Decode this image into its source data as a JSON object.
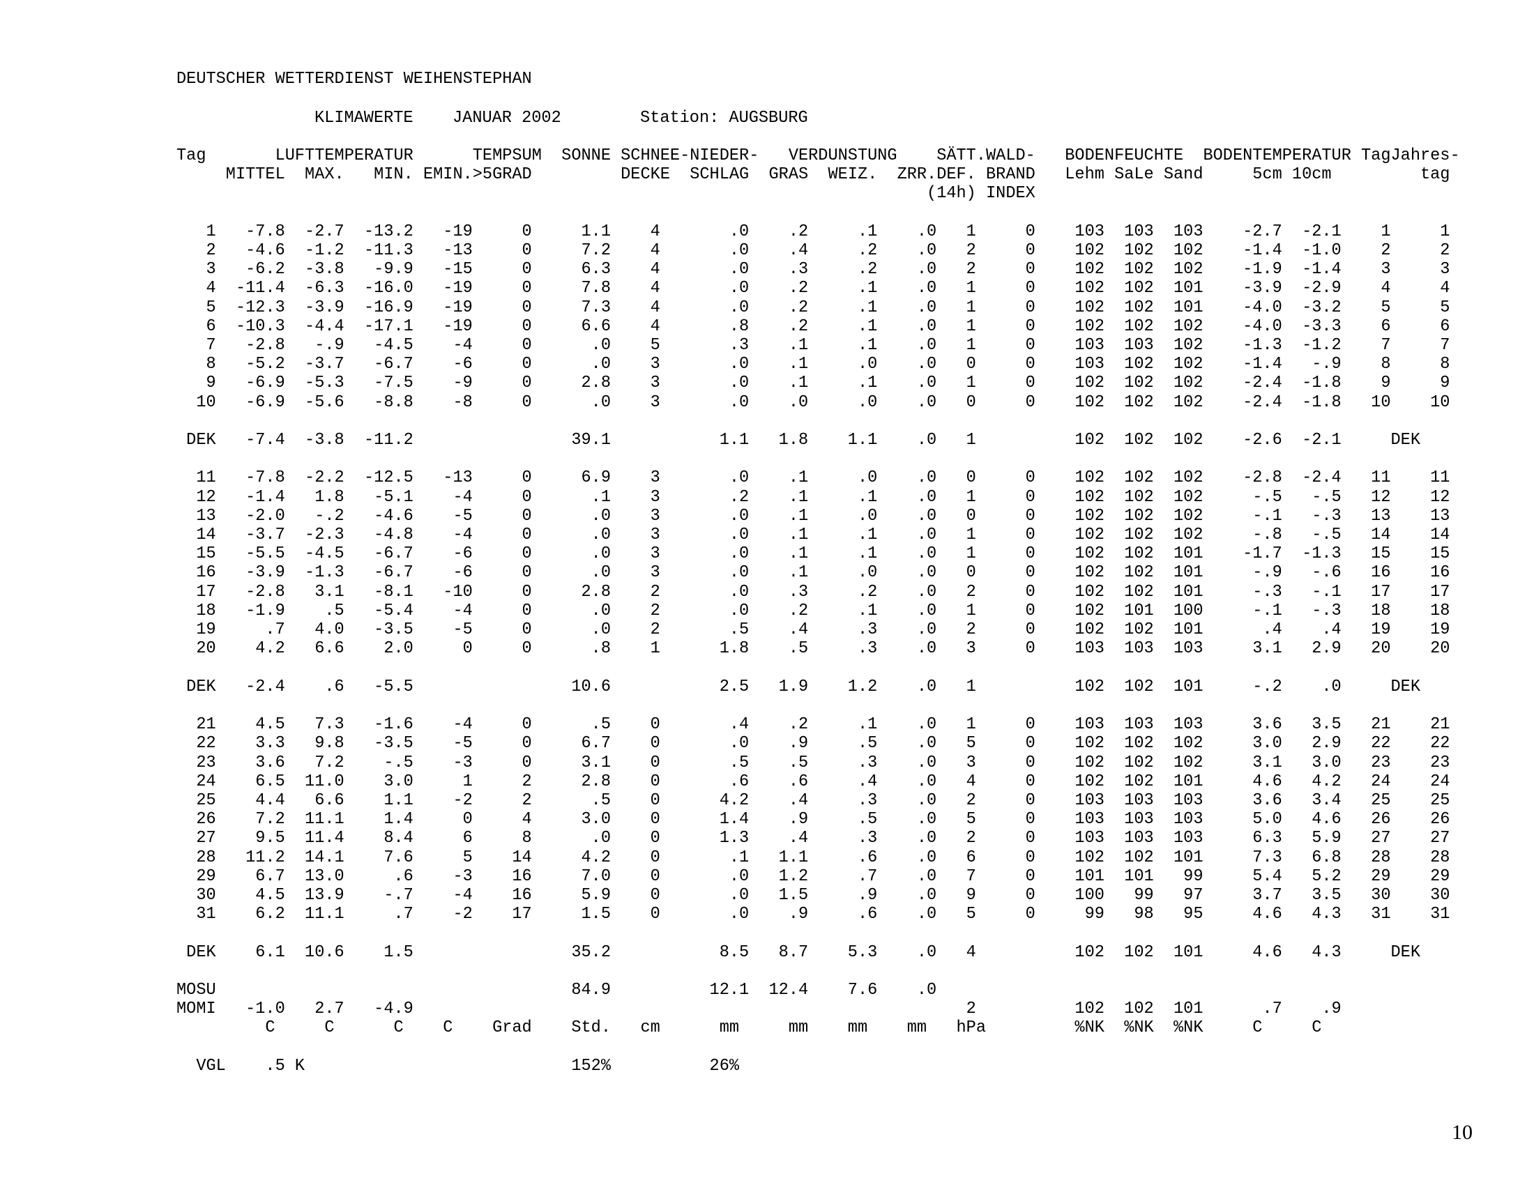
{
  "document": {
    "agency_line": "DEUTSCHER WETTERDIENST WEIHENSTEPHAN",
    "report_type": "KLIMAWERTE",
    "period": "JANUAR 2002",
    "station_label": "Station: AUGSBURG",
    "page_number": "10"
  },
  "table": {
    "header_row1": [
      "Tag",
      "LUFTTEMPERATUR",
      "TEMPSUM",
      "SONNE",
      "SCHNEE-",
      "NIEDER-",
      "VERDUNSTUNG",
      "SÄTT.",
      "WALD-",
      "BODENFEUCHTE",
      "BODENTEMPERATUR",
      "Tag",
      "Jahres-"
    ],
    "header_row2": [
      "MITTEL",
      "MAX.",
      "MIN.",
      "EMIN.",
      ">5GRAD",
      "DECKE",
      "SCHLAG",
      "GRAS",
      "WEIZ.",
      "ZRR.",
      "DEF.",
      "BRAND",
      "Lehm",
      "SaLe",
      "Sand",
      "5cm",
      "10cm",
      "tag"
    ],
    "header_row3": [
      "(14h)",
      "INDEX"
    ],
    "groups": [
      {
        "rows": [
          [
            "1",
            "-7.8",
            "-2.7",
            "-13.2",
            "-19",
            "0",
            "1.1",
            "4",
            ".0",
            ".2",
            ".1",
            ".0",
            "1",
            "0",
            "103",
            "103",
            "103",
            "-2.7",
            "-2.1",
            "1",
            "1"
          ],
          [
            "2",
            "-4.6",
            "-1.2",
            "-11.3",
            "-13",
            "0",
            "7.2",
            "4",
            ".0",
            ".4",
            ".2",
            ".0",
            "2",
            "0",
            "102",
            "102",
            "102",
            "-1.4",
            "-1.0",
            "2",
            "2"
          ],
          [
            "3",
            "-6.2",
            "-3.8",
            "-9.9",
            "-15",
            "0",
            "6.3",
            "4",
            ".0",
            ".3",
            ".2",
            ".0",
            "2",
            "0",
            "102",
            "102",
            "102",
            "-1.9",
            "-1.4",
            "3",
            "3"
          ],
          [
            "4",
            "-11.4",
            "-6.3",
            "-16.0",
            "-19",
            "0",
            "7.8",
            "4",
            ".0",
            ".2",
            ".1",
            ".0",
            "1",
            "0",
            "102",
            "102",
            "101",
            "-3.9",
            "-2.9",
            "4",
            "4"
          ],
          [
            "5",
            "-12.3",
            "-3.9",
            "-16.9",
            "-19",
            "0",
            "7.3",
            "4",
            ".0",
            ".2",
            ".1",
            ".0",
            "1",
            "0",
            "102",
            "102",
            "101",
            "-4.0",
            "-3.2",
            "5",
            "5"
          ],
          [
            "6",
            "-10.3",
            "-4.4",
            "-17.1",
            "-19",
            "0",
            "6.6",
            "4",
            ".8",
            ".2",
            ".1",
            ".0",
            "1",
            "0",
            "102",
            "102",
            "102",
            "-4.0",
            "-3.3",
            "6",
            "6"
          ],
          [
            "7",
            "-2.8",
            "-.9",
            "-4.5",
            "-4",
            "0",
            ".0",
            "5",
            ".3",
            ".1",
            ".1",
            ".0",
            "1",
            "0",
            "103",
            "103",
            "102",
            "-1.3",
            "-1.2",
            "7",
            "7"
          ],
          [
            "8",
            "-5.2",
            "-3.7",
            "-6.7",
            "-6",
            "0",
            ".0",
            "3",
            ".0",
            ".1",
            ".0",
            ".0",
            "0",
            "0",
            "103",
            "102",
            "102",
            "-1.4",
            "-.9",
            "8",
            "8"
          ],
          [
            "9",
            "-6.9",
            "-5.3",
            "-7.5",
            "-9",
            "0",
            "2.8",
            "3",
            ".0",
            ".1",
            ".1",
            ".0",
            "1",
            "0",
            "102",
            "102",
            "102",
            "-2.4",
            "-1.8",
            "9",
            "9"
          ],
          [
            "10",
            "-6.9",
            "-5.6",
            "-8.8",
            "-8",
            "0",
            ".0",
            "3",
            ".0",
            ".0",
            ".0",
            ".0",
            "0",
            "0",
            "102",
            "102",
            "102",
            "-2.4",
            "-1.8",
            "10",
            "10"
          ]
        ],
        "summary": [
          "DEK",
          "-7.4",
          "-3.8",
          "-11.2",
          "",
          "",
          "39.1",
          "",
          "1.1",
          "1.8",
          "1.1",
          ".0",
          "1",
          "",
          "102",
          "102",
          "102",
          "-2.6",
          "-2.1",
          "DEK",
          ""
        ]
      },
      {
        "rows": [
          [
            "11",
            "-7.8",
            "-2.2",
            "-12.5",
            "-13",
            "0",
            "6.9",
            "3",
            ".0",
            ".1",
            ".0",
            ".0",
            "0",
            "0",
            "102",
            "102",
            "102",
            "-2.8",
            "-2.4",
            "11",
            "11"
          ],
          [
            "12",
            "-1.4",
            "1.8",
            "-5.1",
            "-4",
            "0",
            ".1",
            "3",
            ".2",
            ".1",
            ".1",
            ".0",
            "1",
            "0",
            "102",
            "102",
            "102",
            "-.5",
            "-.5",
            "12",
            "12"
          ],
          [
            "13",
            "-2.0",
            "-.2",
            "-4.6",
            "-5",
            "0",
            ".0",
            "3",
            ".0",
            ".1",
            ".0",
            ".0",
            "0",
            "0",
            "102",
            "102",
            "102",
            "-.1",
            "-.3",
            "13",
            "13"
          ],
          [
            "14",
            "-3.7",
            "-2.3",
            "-4.8",
            "-4",
            "0",
            ".0",
            "3",
            ".0",
            ".1",
            ".1",
            ".0",
            "1",
            "0",
            "102",
            "102",
            "102",
            "-.8",
            "-.5",
            "14",
            "14"
          ],
          [
            "15",
            "-5.5",
            "-4.5",
            "-6.7",
            "-6",
            "0",
            ".0",
            "3",
            ".0",
            ".1",
            ".1",
            ".0",
            "1",
            "0",
            "102",
            "102",
            "101",
            "-1.7",
            "-1.3",
            "15",
            "15"
          ],
          [
            "16",
            "-3.9",
            "-1.3",
            "-6.7",
            "-6",
            "0",
            ".0",
            "3",
            ".0",
            ".1",
            ".0",
            ".0",
            "0",
            "0",
            "102",
            "102",
            "101",
            "-.9",
            "-.6",
            "16",
            "16"
          ],
          [
            "17",
            "-2.8",
            "3.1",
            "-8.1",
            "-10",
            "0",
            "2.8",
            "2",
            ".0",
            ".3",
            ".2",
            ".0",
            "2",
            "0",
            "102",
            "102",
            "101",
            "-.3",
            "-.1",
            "17",
            "17"
          ],
          [
            "18",
            "-1.9",
            ".5",
            "-5.4",
            "-4",
            "0",
            ".0",
            "2",
            ".0",
            ".2",
            ".1",
            ".0",
            "1",
            "0",
            "102",
            "101",
            "100",
            "-.1",
            "-.3",
            "18",
            "18"
          ],
          [
            "19",
            ".7",
            "4.0",
            "-3.5",
            "-5",
            "0",
            ".0",
            "2",
            ".5",
            ".4",
            ".3",
            ".0",
            "2",
            "0",
            "102",
            "102",
            "101",
            ".4",
            ".4",
            "19",
            "19"
          ],
          [
            "20",
            "4.2",
            "6.6",
            "2.0",
            "0",
            "0",
            ".8",
            "1",
            "1.8",
            ".5",
            ".3",
            ".0",
            "3",
            "0",
            "103",
            "103",
            "103",
            "3.1",
            "2.9",
            "20",
            "20"
          ]
        ],
        "summary": [
          "DEK",
          "-2.4",
          ".6",
          "-5.5",
          "",
          "",
          "10.6",
          "",
          "2.5",
          "1.9",
          "1.2",
          ".0",
          "1",
          "",
          "102",
          "102",
          "101",
          "-.2",
          ".0",
          "DEK",
          ""
        ]
      },
      {
        "rows": [
          [
            "21",
            "4.5",
            "7.3",
            "-1.6",
            "-4",
            "0",
            ".5",
            "0",
            ".4",
            ".2",
            ".1",
            ".0",
            "1",
            "0",
            "103",
            "103",
            "103",
            "3.6",
            "3.5",
            "21",
            "21"
          ],
          [
            "22",
            "3.3",
            "9.8",
            "-3.5",
            "-5",
            "0",
            "6.7",
            "0",
            ".0",
            ".9",
            ".5",
            ".0",
            "5",
            "0",
            "102",
            "102",
            "102",
            "3.0",
            "2.9",
            "22",
            "22"
          ],
          [
            "23",
            "3.6",
            "7.2",
            "-.5",
            "-3",
            "0",
            "3.1",
            "0",
            ".5",
            ".5",
            ".3",
            ".0",
            "3",
            "0",
            "102",
            "102",
            "102",
            "3.1",
            "3.0",
            "23",
            "23"
          ],
          [
            "24",
            "6.5",
            "11.0",
            "3.0",
            "1",
            "2",
            "2.8",
            "0",
            ".6",
            ".6",
            ".4",
            ".0",
            "4",
            "0",
            "102",
            "102",
            "101",
            "4.6",
            "4.2",
            "24",
            "24"
          ],
          [
            "25",
            "4.4",
            "6.6",
            "1.1",
            "-2",
            "2",
            ".5",
            "0",
            "4.2",
            ".4",
            ".3",
            ".0",
            "2",
            "0",
            "103",
            "103",
            "103",
            "3.6",
            "3.4",
            "25",
            "25"
          ],
          [
            "26",
            "7.2",
            "11.1",
            "1.4",
            "0",
            "4",
            "3.0",
            "0",
            "1.4",
            ".9",
            ".5",
            ".0",
            "5",
            "0",
            "103",
            "103",
            "103",
            "5.0",
            "4.6",
            "26",
            "26"
          ],
          [
            "27",
            "9.5",
            "11.4",
            "8.4",
            "6",
            "8",
            ".0",
            "0",
            "1.3",
            ".4",
            ".3",
            ".0",
            "2",
            "0",
            "103",
            "103",
            "103",
            "6.3",
            "5.9",
            "27",
            "27"
          ],
          [
            "28",
            "11.2",
            "14.1",
            "7.6",
            "5",
            "14",
            "4.2",
            "0",
            ".1",
            "1.1",
            ".6",
            ".0",
            "6",
            "0",
            "102",
            "102",
            "101",
            "7.3",
            "6.8",
            "28",
            "28"
          ],
          [
            "29",
            "6.7",
            "13.0",
            ".6",
            "-3",
            "16",
            "7.0",
            "0",
            ".0",
            "1.2",
            ".7",
            ".0",
            "7",
            "0",
            "101",
            "101",
            "99",
            "5.4",
            "5.2",
            "29",
            "29"
          ],
          [
            "30",
            "4.5",
            "13.9",
            "-.7",
            "-4",
            "16",
            "5.9",
            "0",
            ".0",
            "1.5",
            ".9",
            ".0",
            "9",
            "0",
            "100",
            "99",
            "97",
            "3.7",
            "3.5",
            "30",
            "30"
          ],
          [
            "31",
            "6.2",
            "11.1",
            ".7",
            "-2",
            "17",
            "1.5",
            "0",
            ".0",
            ".9",
            ".6",
            ".0",
            "5",
            "0",
            "99",
            "98",
            "95",
            "4.6",
            "4.3",
            "31",
            "31"
          ]
        ],
        "summary": [
          "DEK",
          "6.1",
          "10.6",
          "1.5",
          "",
          "",
          "35.2",
          "",
          "8.5",
          "8.7",
          "5.3",
          ".0",
          "4",
          "",
          "102",
          "102",
          "101",
          "4.6",
          "4.3",
          "DEK",
          ""
        ]
      }
    ],
    "mosu_row": [
      "MOSU",
      "",
      "",
      "",
      "",
      "",
      "84.9",
      "",
      "12.1",
      "12.4",
      "7.6",
      ".0",
      "",
      "",
      "",
      "",
      "",
      "",
      "",
      "",
      ""
    ],
    "momi_row": [
      "MOMI",
      "-1.0",
      "2.7",
      "-4.9",
      "",
      "",
      "",
      "",
      "",
      "",
      "",
      "",
      "2",
      "",
      "102",
      "102",
      "101",
      ".7",
      ".9",
      "",
      ""
    ],
    "units_row": [
      "",
      "C",
      "C",
      "C",
      "C",
      "Grad",
      "Std.",
      "cm",
      "mm",
      "mm",
      "mm",
      "mm",
      "hPa",
      "",
      "%NK",
      "%NK",
      "%NK",
      "C",
      "C",
      "",
      ""
    ],
    "vgl_row": [
      "VGL",
      ".5",
      "K",
      "",
      "",
      "",
      "152%",
      "",
      "26%",
      "",
      "",
      "",
      "",
      "",
      "",
      "",
      "",
      "",
      "",
      "",
      ""
    ]
  }
}
